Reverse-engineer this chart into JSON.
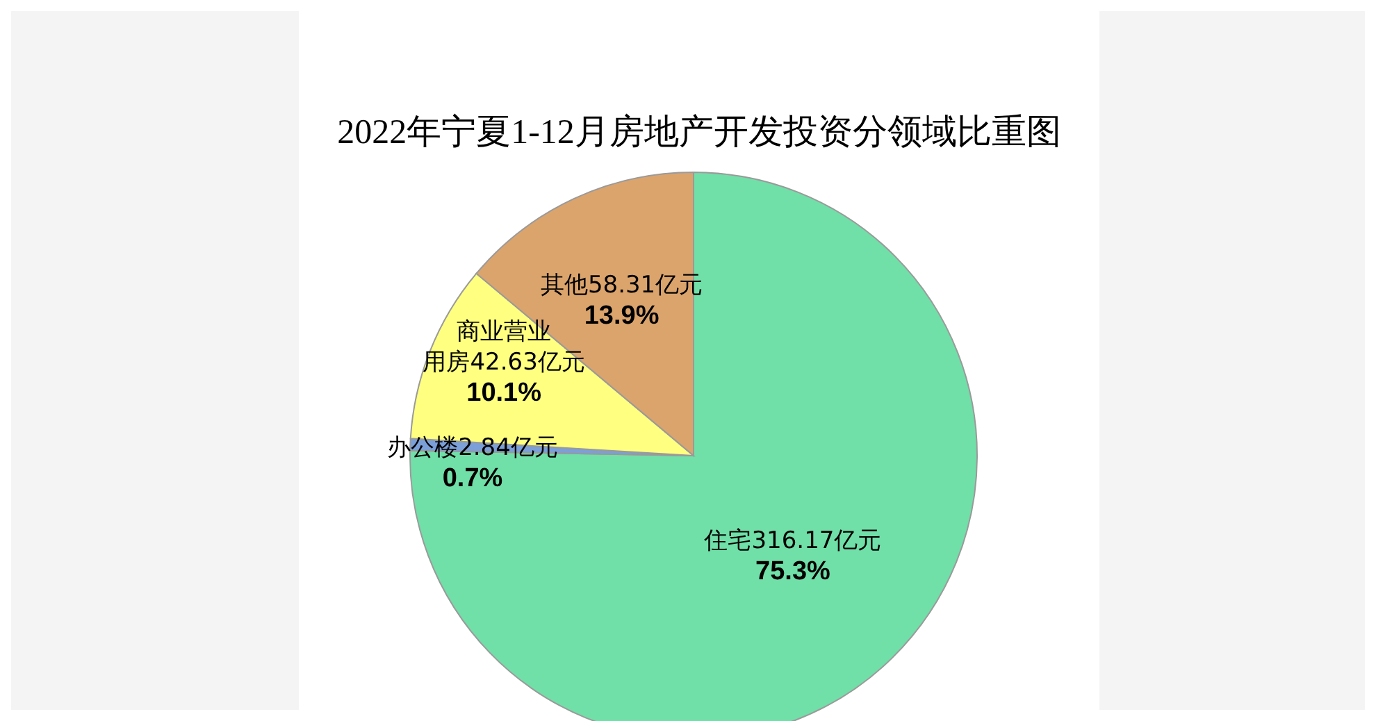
{
  "chart_data": {
    "type": "pie",
    "title": "2022年宁夏1-12月房地产开发投资分领域比重图",
    "categories": [
      "住宅",
      "办公楼",
      "商业营业用房",
      "其他"
    ],
    "values": [
      316.17,
      2.84,
      42.63,
      58.31
    ],
    "value_labels": [
      "316.17亿元\n75.3%",
      "2.84亿元\n0.7%",
      "42.63亿元\n10.1%",
      "58.31亿元\n13.9%"
    ],
    "colors": [
      "#70dfa8",
      "#7b9fd8",
      "#ffff80",
      "#dba46c"
    ],
    "legend": false
  }
}
